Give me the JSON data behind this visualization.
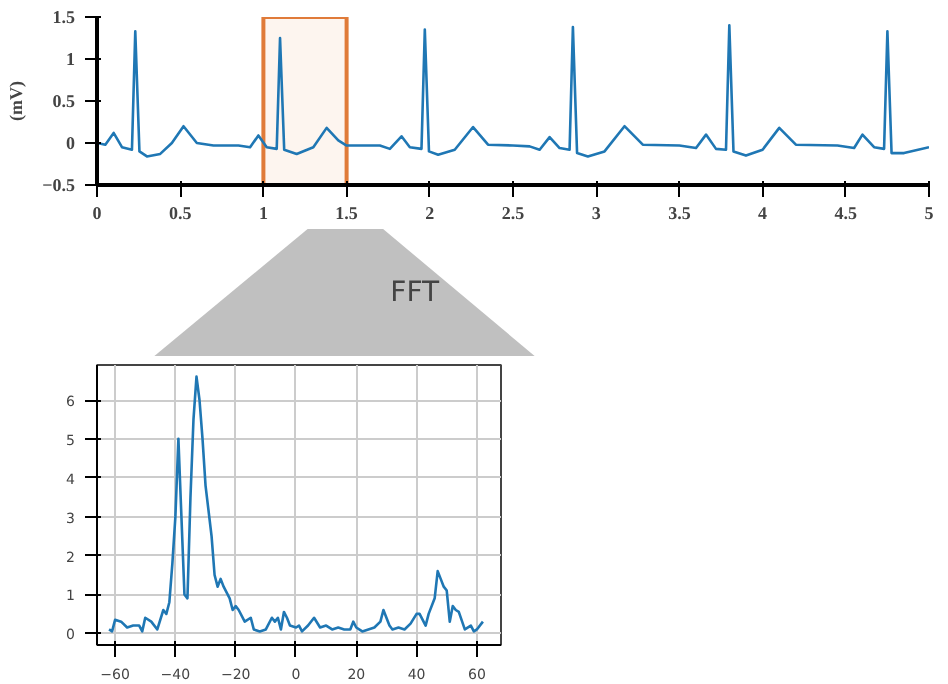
{
  "chart_data": [
    {
      "type": "line",
      "ylabel": "(mV)",
      "xlim": [
        0,
        5
      ],
      "ylim": [
        -0.5,
        1.5
      ],
      "xticks": [
        0,
        0.5,
        1,
        1.5,
        2,
        2.5,
        3,
        3.5,
        4,
        4.5,
        5
      ],
      "yticks": [
        -0.5,
        0,
        0.5,
        1,
        1.5
      ],
      "grid": false,
      "bands": [
        {
          "axis": "x",
          "from": 1,
          "to": 1.5,
          "color": "#e07b39"
        }
      ],
      "series": [
        {
          "color": "#1f77b4",
          "x": [
            0,
            0.05,
            0.1,
            0.15,
            0.21,
            0.23,
            0.255,
            0.3,
            0.38,
            0.45,
            0.52,
            0.6,
            0.7,
            0.85,
            0.92,
            0.97,
            1.02,
            1.08,
            1.1,
            1.125,
            1.2,
            1.3,
            1.38,
            1.45,
            1.5,
            1.7,
            1.76,
            1.83,
            1.88,
            1.95,
            1.97,
            1.995,
            2.05,
            2.15,
            2.26,
            2.35,
            2.5,
            2.6,
            2.66,
            2.72,
            2.78,
            2.84,
            2.86,
            2.885,
            2.95,
            3.05,
            3.17,
            3.28,
            3.5,
            3.6,
            3.66,
            3.72,
            3.78,
            3.8,
            3.825,
            3.9,
            4.0,
            4.1,
            4.2,
            4.45,
            4.55,
            4.6,
            4.67,
            4.73,
            4.75,
            4.775,
            4.85,
            5.0
          ],
          "values": [
            0.0,
            -0.02,
            0.12,
            -0.05,
            -0.08,
            1.33,
            -0.1,
            -0.16,
            -0.13,
            0.0,
            0.2,
            0.0,
            -0.03,
            -0.03,
            -0.05,
            0.09,
            -0.05,
            -0.07,
            1.25,
            -0.08,
            -0.13,
            -0.05,
            0.18,
            0.03,
            -0.03,
            -0.03,
            -0.07,
            0.08,
            -0.05,
            -0.07,
            1.35,
            -0.1,
            -0.14,
            -0.08,
            0.19,
            -0.02,
            -0.03,
            -0.04,
            -0.08,
            0.07,
            -0.06,
            -0.08,
            1.38,
            -0.12,
            -0.16,
            -0.1,
            0.2,
            -0.02,
            -0.03,
            -0.06,
            0.1,
            -0.07,
            -0.08,
            1.4,
            -0.1,
            -0.15,
            -0.08,
            0.18,
            -0.02,
            -0.03,
            -0.06,
            0.1,
            -0.05,
            -0.07,
            1.33,
            -0.12,
            -0.12,
            -0.05
          ]
        }
      ]
    },
    {
      "type": "line",
      "annotations": [
        "FFT"
      ],
      "xlim": [
        -66,
        68
      ],
      "ylim": [
        -0.3,
        6.9
      ],
      "xticks": [
        -60,
        -40,
        -20,
        0,
        20,
        40,
        60
      ],
      "yticks": [
        0,
        1,
        2,
        3,
        4,
        5,
        6
      ],
      "grid": true,
      "series": [
        {
          "color": "#1f77b4",
          "x": [
            -62,
            -61,
            -60,
            -58,
            -56,
            -54,
            -52,
            -51,
            -50,
            -48,
            -46,
            -44,
            -43,
            -42,
            -41,
            -40,
            -39,
            -38,
            -37,
            -36,
            -35,
            -34,
            -33,
            -32,
            -31,
            -30,
            -28,
            -27,
            -26,
            -25,
            -24,
            -22,
            -21,
            -20,
            -19,
            -17,
            -15,
            -14,
            -12,
            -10,
            -8,
            -7,
            -6,
            -5,
            -4,
            -3,
            -2,
            0,
            1,
            2,
            4,
            6,
            8,
            10,
            12,
            14,
            16,
            18,
            19,
            20,
            22,
            24,
            26,
            28,
            29,
            30,
            31,
            32,
            34,
            36,
            38,
            40,
            41,
            43,
            44,
            46,
            47,
            48,
            49,
            50,
            51,
            52,
            53,
            54,
            56,
            58,
            59,
            60,
            62
          ],
          "values": [
            0.1,
            0.05,
            0.35,
            0.3,
            0.15,
            0.2,
            0.2,
            0.05,
            0.4,
            0.3,
            0.1,
            0.6,
            0.5,
            0.8,
            1.8,
            3.0,
            5.0,
            3.0,
            1.0,
            0.9,
            3.5,
            5.5,
            6.6,
            6.0,
            5.0,
            3.8,
            2.5,
            1.5,
            1.2,
            1.4,
            1.2,
            0.9,
            0.6,
            0.7,
            0.6,
            0.3,
            0.4,
            0.1,
            0.05,
            0.1,
            0.4,
            0.3,
            0.4,
            0.1,
            0.55,
            0.4,
            0.2,
            0.15,
            0.2,
            0.05,
            0.2,
            0.4,
            0.15,
            0.2,
            0.1,
            0.15,
            0.1,
            0.1,
            0.3,
            0.15,
            0.05,
            0.1,
            0.15,
            0.3,
            0.6,
            0.4,
            0.2,
            0.1,
            0.15,
            0.1,
            0.25,
            0.5,
            0.5,
            0.2,
            0.5,
            0.9,
            1.6,
            1.4,
            1.2,
            1.1,
            0.3,
            0.7,
            0.6,
            0.55,
            0.1,
            0.2,
            0.05,
            0.1,
            0.3
          ]
        }
      ]
    }
  ]
}
